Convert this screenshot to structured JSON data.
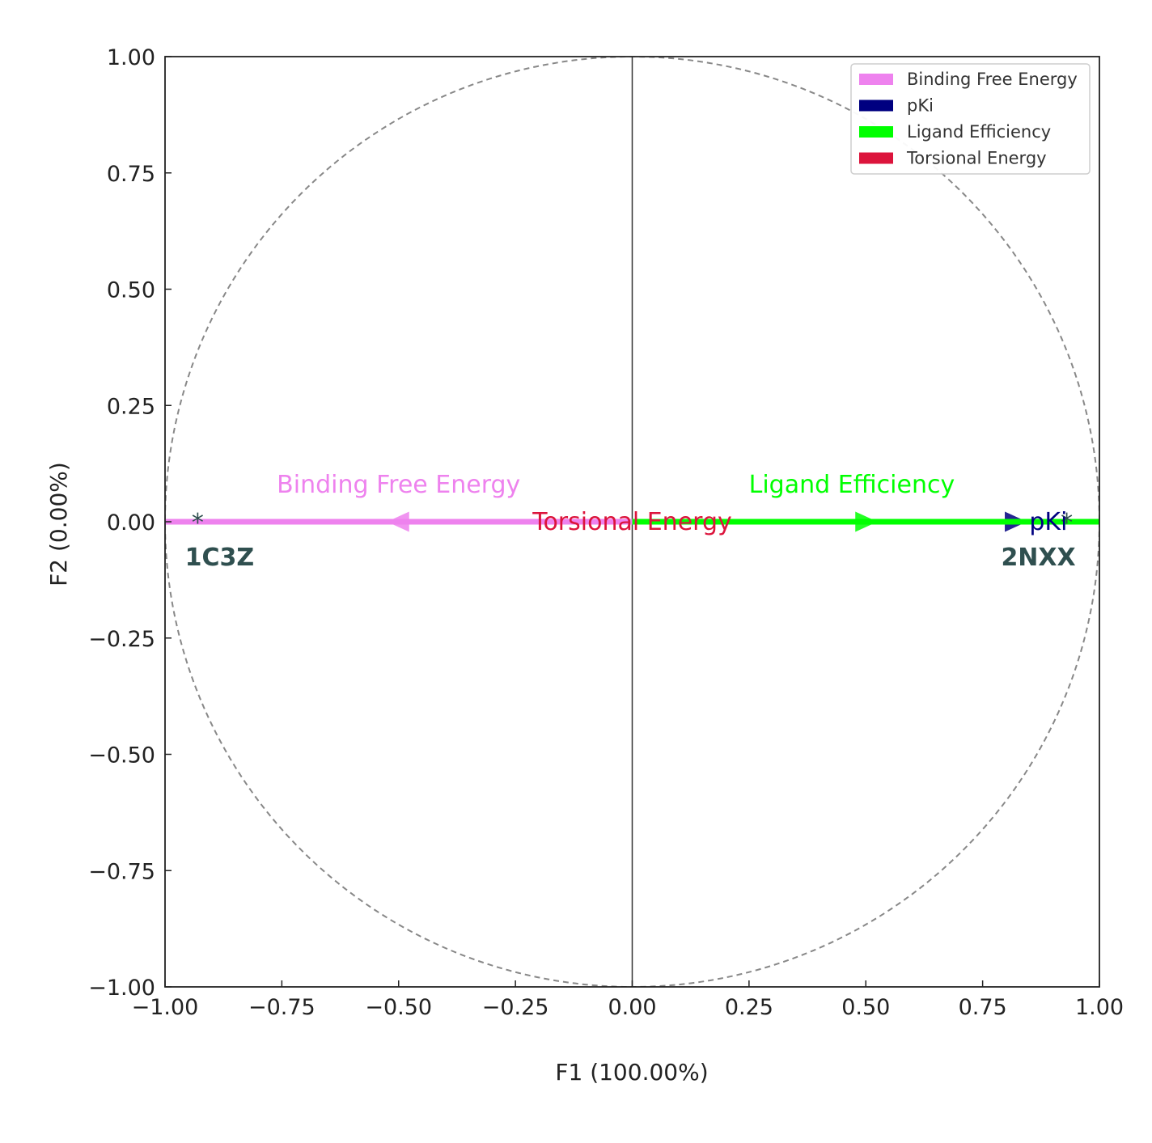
{
  "chart_data": {
    "type": "scatter",
    "subtype": "pca-correlation-circle",
    "xlabel": "F1 (100.00%)",
    "ylabel": "F2 (0.00%)",
    "xlim": [
      -1.0,
      1.0
    ],
    "ylim": [
      -1.0,
      1.0
    ],
    "xticks": [
      "−1.00",
      "−0.75",
      "−0.50",
      "−0.25",
      "0.00",
      "0.25",
      "0.50",
      "0.75",
      "1.00"
    ],
    "yticks": [
      "−1.00",
      "−0.75",
      "−0.50",
      "−0.25",
      "0.00",
      "0.25",
      "0.50",
      "0.75",
      "1.00"
    ],
    "xtick_values": [
      -1.0,
      -0.75,
      -0.5,
      -0.25,
      0.0,
      0.25,
      0.5,
      0.75,
      1.0
    ],
    "ytick_values": [
      -1.0,
      -0.75,
      -0.5,
      -0.25,
      0.0,
      0.25,
      0.5,
      0.75,
      1.0
    ],
    "unit_circle": true,
    "grid": false,
    "legend_position": "top-right",
    "vectors": [
      {
        "name": "Binding Free Energy",
        "x": -1.0,
        "y": 0.0,
        "color": "#ee82ee",
        "label_x": -0.5,
        "label_y": 0.08
      },
      {
        "name": "pKi",
        "x": 1.0,
        "y": 0.0,
        "color": "#000080",
        "label_x": 0.85,
        "label_y": 0.0
      },
      {
        "name": "Ligand Efficiency",
        "x": 1.0,
        "y": 0.0,
        "color": "#00ff00",
        "label_x": 0.47,
        "label_y": 0.08
      },
      {
        "name": "Torsional Energy",
        "x": 0.0,
        "y": 0.0,
        "color": "#dc143c",
        "label_x": 0.0,
        "label_y": 0.0
      }
    ],
    "observations": [
      {
        "name": "1C3Z",
        "x": -0.93,
        "y": 0.0
      },
      {
        "name": "2NXX",
        "x": 0.93,
        "y": 0.0
      }
    ]
  }
}
